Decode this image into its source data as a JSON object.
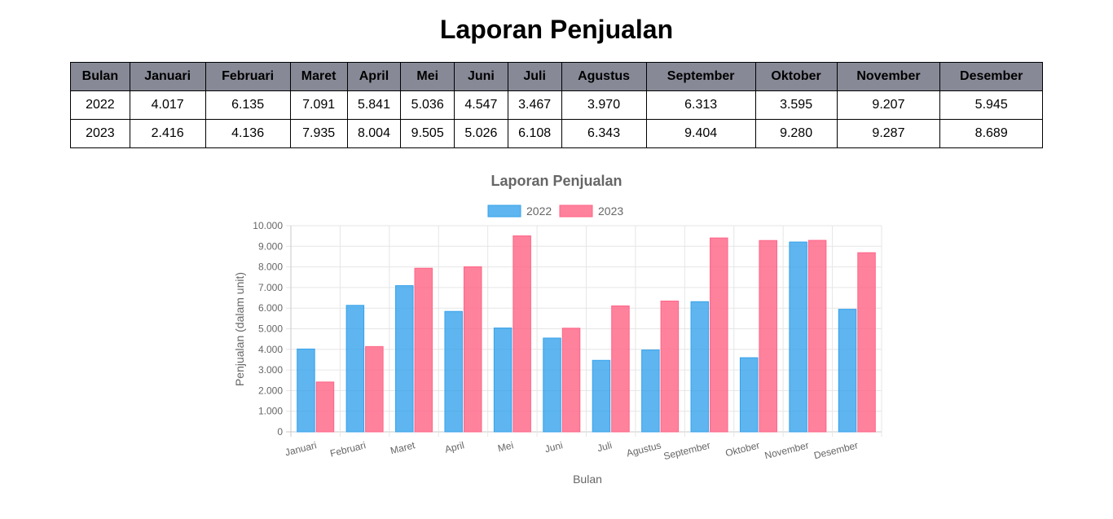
{
  "page": {
    "title": "Laporan Penjualan"
  },
  "table": {
    "headers": [
      "Bulan",
      "Januari",
      "Februari",
      "Maret",
      "April",
      "Mei",
      "Juni",
      "Juli",
      "Agustus",
      "September",
      "Oktober",
      "November",
      "Desember"
    ],
    "rows": [
      [
        "2022",
        "4.017",
        "6.135",
        "7.091",
        "5.841",
        "5.036",
        "4.547",
        "3.467",
        "3.970",
        "6.313",
        "3.595",
        "9.207",
        "5.945"
      ],
      [
        "2023",
        "2.416",
        "4.136",
        "7.935",
        "8.004",
        "9.505",
        "5.026",
        "6.108",
        "6.343",
        "9.404",
        "9.280",
        "9.287",
        "8.689"
      ]
    ]
  },
  "chart_data": {
    "type": "bar",
    "title": "Laporan Penjualan",
    "xlabel": "Bulan",
    "ylabel": "Penjualan (dalam unit)",
    "categories": [
      "Januari",
      "Februari",
      "Maret",
      "April",
      "Mei",
      "Juni",
      "Juli",
      "Agustus",
      "September",
      "Oktober",
      "November",
      "Desember"
    ],
    "series": [
      {
        "name": "2022",
        "color": "#36a2eb",
        "values": [
          4017,
          6135,
          7091,
          5841,
          5036,
          4547,
          3467,
          3970,
          6313,
          3595,
          9207,
          5945
        ]
      },
      {
        "name": "2023",
        "color": "#ff6384",
        "values": [
          2416,
          4136,
          7935,
          8004,
          9505,
          5026,
          6108,
          6343,
          9404,
          9280,
          9287,
          8689
        ]
      }
    ],
    "ylim": [
      0,
      10000
    ],
    "ytick_step": 1000,
    "yticks": [
      "0",
      "1.000",
      "2.000",
      "3.000",
      "4.000",
      "5.000",
      "6.000",
      "7.000",
      "8.000",
      "9.000",
      "10.000"
    ],
    "grid": true,
    "legend_position": "top"
  }
}
